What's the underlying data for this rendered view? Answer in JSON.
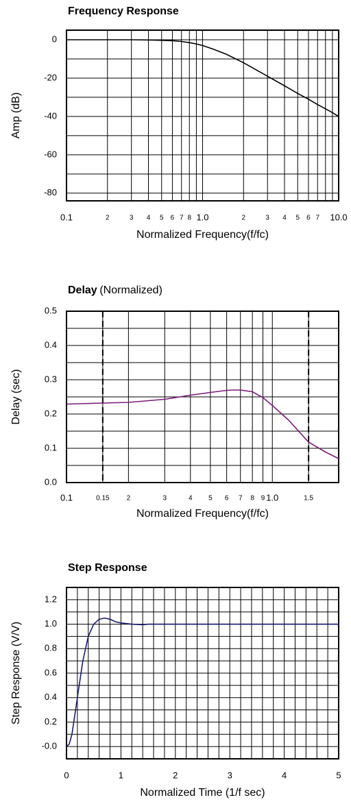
{
  "chart_data": [
    {
      "type": "line",
      "title": "Frequency Response",
      "xlabel": "Normalized Frequency(f/fc)",
      "ylabel": "Amp (dB)",
      "xscale": "log",
      "xlim": [
        0.1,
        10
      ],
      "ylim": [
        -84,
        5
      ],
      "xticks": [
        0.1,
        {
          "value": 0.2,
          "label": "2"
        },
        {
          "value": 0.3,
          "label": "3"
        },
        {
          "value": 0.4,
          "label": "4"
        },
        {
          "value": 0.5,
          "label": "5"
        },
        {
          "value": 0.6,
          "label": "6"
        },
        {
          "value": 0.7,
          "label": "7"
        },
        {
          "value": 0.8,
          "label": "8"
        },
        {
          "value": 0.9,
          "label": null
        },
        {
          "value": 1,
          "label": "1.0"
        },
        {
          "value": 2,
          "label": "2"
        },
        {
          "value": 3,
          "label": "3"
        },
        {
          "value": 4,
          "label": "4"
        },
        {
          "value": 5,
          "label": "5"
        },
        {
          "value": 6,
          "label": "6"
        },
        {
          "value": 7,
          "label": "7"
        },
        {
          "value": 8,
          "label": null
        },
        {
          "value": 9,
          "label": null
        },
        {
          "value": 10,
          "label": "10.0"
        }
      ],
      "yticks": [
        0,
        {
          "value": -10,
          "label": null
        },
        -20,
        {
          "value": -30,
          "label": null
        },
        -40,
        {
          "value": -50,
          "label": null
        },
        -60,
        {
          "value": -70,
          "label": null
        },
        -80
      ],
      "grid": true,
      "x": [
        0.1,
        0.2,
        0.3,
        0.4,
        0.5,
        0.6,
        0.7,
        0.8,
        0.9,
        1.0,
        1.2,
        1.5,
        2,
        3,
        4,
        5,
        6,
        7,
        8,
        9,
        10
      ],
      "series": [
        {
          "name": null,
          "color": "#000000",
          "values": [
            0,
            0,
            0,
            -0.1,
            -0.3,
            -0.5,
            -0.9,
            -1.5,
            -2.2,
            -3,
            -4.9,
            -7.6,
            -12,
            -19,
            -24,
            -28,
            -31,
            -33.8,
            -36,
            -38,
            -40
          ]
        }
      ]
    },
    {
      "type": "line",
      "title": "Delay",
      "subtitle": "(Normalized)",
      "xlabel": "Normalized Frequency(f/fc)",
      "ylabel": "Delay (sec)",
      "xscale": "log",
      "xlim": [
        0.1,
        2.1
      ],
      "ylim": [
        0,
        0.5
      ],
      "xticks": [
        0.1,
        {
          "value": 0.15,
          "label": "0.15"
        },
        {
          "value": 0.2,
          "label": "2"
        },
        {
          "value": 0.3,
          "label": "3"
        },
        {
          "value": 0.4,
          "label": "4"
        },
        {
          "value": 0.5,
          "label": "5"
        },
        {
          "value": 0.6,
          "label": "6"
        },
        {
          "value": 0.7,
          "label": "7"
        },
        {
          "value": 0.8,
          "label": "8"
        },
        {
          "value": 0.9,
          "label": "9"
        },
        {
          "value": 1,
          "label": "1.0"
        },
        1.5
      ],
      "yticks": [
        {
          "value": 0,
          "label": "0.0"
        },
        {
          "value": 0.05,
          "label": null
        },
        0.1,
        {
          "value": 0.15,
          "label": null
        },
        0.2,
        {
          "value": 0.25,
          "label": null
        },
        0.3,
        {
          "value": 0.35,
          "label": null
        },
        0.4,
        {
          "value": 0.45,
          "label": null
        },
        0.5
      ],
      "grid": true,
      "markers": [
        0.15,
        1.5
      ],
      "x": [
        0.1,
        0.15,
        0.2,
        0.3,
        0.4,
        0.5,
        0.6,
        0.65,
        0.7,
        0.8,
        0.9,
        1.0,
        1.2,
        1.5,
        1.8,
        2.1
      ],
      "series": [
        {
          "name": null,
          "color": "#7b1a7b",
          "values": [
            0.229,
            0.232,
            0.234,
            0.243,
            0.255,
            0.263,
            0.269,
            0.27,
            0.27,
            0.265,
            0.248,
            0.225,
            0.182,
            0.118,
            0.09,
            0.07
          ]
        }
      ]
    },
    {
      "type": "line",
      "title": "Step Response",
      "xlabel": "Normalized Time (1/f sec)",
      "ylabel": "Step Response (V/V)",
      "xscale": "linear",
      "xlim": [
        0,
        5
      ],
      "ylim": [
        -0.1,
        1.3
      ],
      "xticks": [
        0,
        {
          "value": 0.2,
          "label": null
        },
        {
          "value": 0.4,
          "label": null
        },
        {
          "value": 0.6,
          "label": null
        },
        {
          "value": 0.8,
          "label": null
        },
        1,
        {
          "value": 1.2,
          "label": null
        },
        {
          "value": 1.4,
          "label": null
        },
        {
          "value": 1.6,
          "label": null
        },
        {
          "value": 1.8,
          "label": null
        },
        2,
        {
          "value": 2.2,
          "label": null
        },
        {
          "value": 2.4,
          "label": null
        },
        {
          "value": 2.6,
          "label": null
        },
        {
          "value": 2.8,
          "label": null
        },
        3,
        {
          "value": 3.2,
          "label": null
        },
        {
          "value": 3.4,
          "label": null
        },
        {
          "value": 3.6,
          "label": null
        },
        {
          "value": 3.8,
          "label": null
        },
        4,
        {
          "value": 4.2,
          "label": null
        },
        {
          "value": 4.4,
          "label": null
        },
        {
          "value": 4.6,
          "label": null
        },
        {
          "value": 4.8,
          "label": null
        },
        5
      ],
      "yticks": [
        {
          "value": 0,
          "label": "-0.0"
        },
        {
          "value": 0.1,
          "label": null
        },
        0.2,
        {
          "value": 0.3,
          "label": null
        },
        0.4,
        {
          "value": 0.5,
          "label": null
        },
        0.6,
        {
          "value": 0.7,
          "label": null
        },
        0.8,
        {
          "value": 0.9,
          "label": null
        },
        {
          "value": 1,
          "label": "1.0"
        },
        {
          "value": 1.1,
          "label": null
        },
        1.2
      ],
      "grid": true,
      "x": [
        0,
        0.05,
        0.1,
        0.2,
        0.3,
        0.4,
        0.5,
        0.6,
        0.7,
        0.8,
        0.9,
        1.0,
        1.2,
        1.4,
        1.5,
        5
      ],
      "series": [
        {
          "name": null,
          "color": "#1a1a70",
          "values": [
            0,
            0.02,
            0.1,
            0.4,
            0.7,
            0.9,
            1.0,
            1.04,
            1.05,
            1.04,
            1.02,
            1.01,
            1.0,
            0.995,
            1.0,
            1.0
          ]
        }
      ]
    }
  ]
}
